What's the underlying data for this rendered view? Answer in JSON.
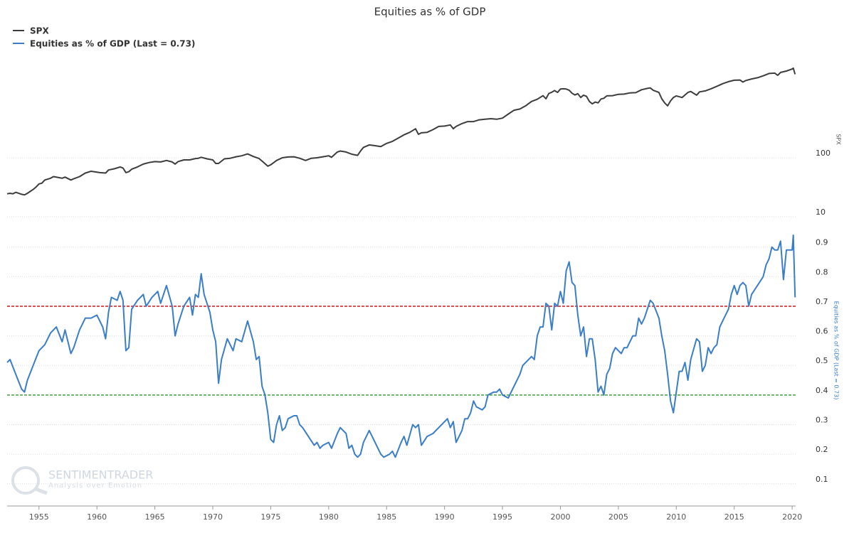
{
  "chart_data": [
    {
      "type": "line",
      "title": "Equities as % of GDP",
      "ylabel": "SPX",
      "log": true,
      "xlim": [
        1952.25,
        2020.3
      ],
      "ylim": [
        10,
        5900
      ],
      "yticks": [
        10,
        100
      ],
      "grid": true,
      "series": [
        {
          "name": "SPX",
          "color": "#3c3c3c",
          "x": [
            1952.25,
            1952.5,
            1952.75,
            1953,
            1953.5,
            1953.75,
            1954,
            1954.5,
            1954.75,
            1955,
            1955.25,
            1955.5,
            1956,
            1956.25,
            1956.75,
            1957,
            1957.25,
            1957.75,
            1958,
            1958.5,
            1959,
            1959.5,
            1960,
            1960.25,
            1960.75,
            1961,
            1961.5,
            1962,
            1962.25,
            1962.5,
            1962.75,
            1963,
            1963.5,
            1964,
            1964.5,
            1965,
            1965.5,
            1966,
            1966.5,
            1966.75,
            1967,
            1967.5,
            1968,
            1968.5,
            1968.75,
            1969,
            1969.5,
            1970,
            1970.25,
            1970.5,
            1971,
            1971.5,
            1972,
            1972.5,
            1973,
            1973.5,
            1974,
            1974.25,
            1974.75,
            1975,
            1975.5,
            1976,
            1976.5,
            1977,
            1977.5,
            1978,
            1978.5,
            1979,
            1979.5,
            1980,
            1980.25,
            1980.75,
            1981,
            1981.5,
            1982,
            1982.5,
            1982.75,
            1983,
            1983.5,
            1984,
            1984.5,
            1985,
            1985.5,
            1986,
            1986.5,
            1987,
            1987.5,
            1987.75,
            1988,
            1988.5,
            1989,
            1989.5,
            1990,
            1990.5,
            1990.75,
            1991,
            1991.5,
            1992,
            1992.5,
            1993,
            1993.5,
            1994,
            1994.5,
            1995,
            1995.5,
            1996,
            1996.5,
            1997,
            1997.5,
            1998,
            1998.5,
            1998.75,
            1999,
            1999.25,
            1999.5,
            1999.75,
            2000,
            2000.25,
            2000.5,
            2000.75,
            2001,
            2001.25,
            2001.5,
            2001.75,
            2002,
            2002.25,
            2002.5,
            2002.75,
            2003,
            2003.25,
            2003.5,
            2003.75,
            2004,
            2004.5,
            2005,
            2005.5,
            2006,
            2006.5,
            2007,
            2007.5,
            2007.75,
            2008,
            2008.5,
            2008.75,
            2009,
            2009.25,
            2009.5,
            2009.75,
            2010,
            2010.5,
            2011,
            2011.25,
            2011.75,
            2012,
            2012.5,
            2013,
            2013.5,
            2014,
            2014.5,
            2015,
            2015.5,
            2015.75,
            2016,
            2016.5,
            2017,
            2017.5,
            2018,
            2018.5,
            2018.75,
            2019,
            2019.5,
            2020,
            2020.1,
            2020.25
          ],
          "values": [
            24.5,
            25,
            24.5,
            26,
            24,
            23.5,
            25,
            29,
            32,
            36,
            37,
            42,
            45,
            48,
            46,
            45,
            47,
            42,
            44,
            48,
            55,
            59,
            57,
            56,
            55,
            62,
            65,
            70,
            67,
            56,
            58,
            64,
            70,
            78,
            83,
            86,
            85,
            90,
            85,
            78,
            86,
            92,
            92,
            97,
            98,
            102,
            96,
            92,
            80,
            80,
            96,
            98,
            104,
            108,
            116,
            105,
            97,
            88,
            72,
            76,
            90,
            100,
            103,
            104,
            98,
            90,
            98,
            100,
            104,
            108,
            102,
            125,
            130,
            125,
            115,
            110,
            130,
            150,
            165,
            160,
            155,
            175,
            190,
            215,
            245,
            270,
            310,
            250,
            265,
            270,
            300,
            340,
            345,
            360,
            310,
            340,
            380,
            410,
            410,
            440,
            450,
            460,
            450,
            470,
            550,
            640,
            670,
            760,
            900,
            980,
            1130,
            1000,
            1230,
            1290,
            1380,
            1280,
            1460,
            1480,
            1460,
            1400,
            1240,
            1160,
            1220,
            1050,
            1150,
            1100,
            900,
            820,
            880,
            850,
            990,
            1020,
            1120,
            1130,
            1190,
            1200,
            1260,
            1270,
            1420,
            1500,
            1530,
            1400,
            1280,
            1000,
            850,
            760,
            920,
            1050,
            1120,
            1050,
            1280,
            1330,
            1150,
            1310,
            1360,
            1480,
            1630,
            1800,
            1950,
            2060,
            2080,
            1920,
            2040,
            2170,
            2270,
            2450,
            2680,
            2720,
            2500,
            2800,
            2950,
            3200,
            3300,
            2600
          ]
        }
      ]
    },
    {
      "type": "line",
      "ylabel": "Equities as % of GDP (Last = 0.73)",
      "xlim": [
        1952.25,
        2020.3
      ],
      "ylim": [
        0.025,
        1.0
      ],
      "xticks": [
        1955,
        1960,
        1965,
        1970,
        1975,
        1980,
        1985,
        1990,
        1995,
        2000,
        2005,
        2010,
        2015,
        2020
      ],
      "yticks": [
        0.1,
        0.2,
        0.3,
        0.4,
        0.5,
        0.6,
        0.7,
        0.8,
        0.9
      ],
      "grid": true,
      "reference_lines": [
        {
          "value": 0.7,
          "color": "#cc0000"
        },
        {
          "value": 0.4,
          "color": "#1f8a1f"
        }
      ],
      "series": [
        {
          "name": "Equities as % of GDP (Last = 0.73)",
          "color": "#3a7dc9",
          "x": [
            1952.25,
            1952.5,
            1953,
            1953.5,
            1953.75,
            1954,
            1954.5,
            1955,
            1955.5,
            1956,
            1956.5,
            1957,
            1957.25,
            1957.75,
            1958,
            1958.5,
            1959,
            1959.5,
            1960,
            1960.5,
            1960.75,
            1961,
            1961.25,
            1961.75,
            1962,
            1962.25,
            1962.5,
            1962.75,
            1963,
            1963.5,
            1964,
            1964.25,
            1964.75,
            1965.25,
            1965.5,
            1966,
            1966.5,
            1966.75,
            1967,
            1967.5,
            1968,
            1968.25,
            1968.5,
            1968.75,
            1969,
            1969.25,
            1969.75,
            1970,
            1970.25,
            1970.5,
            1970.75,
            1971.25,
            1971.75,
            1972,
            1972.5,
            1973,
            1973.5,
            1973.75,
            1974,
            1974.25,
            1974.5,
            1974.75,
            1975,
            1975.25,
            1975.5,
            1975.75,
            1976,
            1976.25,
            1976.5,
            1977,
            1977.25,
            1977.5,
            1977.75,
            1978.25,
            1978.75,
            1979,
            1979.25,
            1979.5,
            1980,
            1980.25,
            1980.75,
            1981,
            1981.5,
            1981.75,
            1982,
            1982.25,
            1982.5,
            1982.75,
            1983,
            1983.5,
            1983.75,
            1984,
            1984.5,
            1984.75,
            1985.25,
            1985.5,
            1985.75,
            1986.25,
            1986.5,
            1986.75,
            1987.25,
            1987.5,
            1987.75,
            1988,
            1988.5,
            1989,
            1989.5,
            1990,
            1990.25,
            1990.5,
            1990.75,
            1991,
            1991.5,
            1991.75,
            1992,
            1992.25,
            1992.5,
            1992.75,
            1993.25,
            1993.5,
            1993.75,
            1994.25,
            1994.5,
            1994.75,
            1995,
            1995.5,
            1996,
            1996.5,
            1996.75,
            1997.25,
            1997.5,
            1997.75,
            1998,
            1998.25,
            1998.5,
            1998.75,
            1999,
            1999.25,
            1999.5,
            1999.75,
            2000,
            2000.25,
            2000.5,
            2000.75,
            2001,
            2001.25,
            2001.5,
            2001.75,
            2002,
            2002.25,
            2002.5,
            2002.75,
            2003,
            2003.25,
            2003.5,
            2003.75,
            2004,
            2004.25,
            2004.5,
            2004.75,
            2005.25,
            2005.5,
            2005.75,
            2006.25,
            2006.5,
            2006.75,
            2007,
            2007.25,
            2007.75,
            2008,
            2008.5,
            2008.75,
            2009,
            2009.25,
            2009.5,
            2009.75,
            2010,
            2010.25,
            2010.5,
            2010.75,
            2011,
            2011.25,
            2011.75,
            2012,
            2012.25,
            2012.5,
            2012.75,
            2013,
            2013.25,
            2013.5,
            2013.75,
            2014,
            2014.5,
            2014.75,
            2015,
            2015.25,
            2015.5,
            2015.75,
            2016,
            2016.25,
            2016.5,
            2017,
            2017.5,
            2017.75,
            2018,
            2018.25,
            2018.5,
            2018.75,
            2019,
            2019.25,
            2019.5,
            2019.75,
            2020,
            2020.1,
            2020.25
          ],
          "values": [
            0.51,
            0.52,
            0.47,
            0.42,
            0.41,
            0.45,
            0.5,
            0.55,
            0.57,
            0.61,
            0.63,
            0.58,
            0.62,
            0.54,
            0.56,
            0.62,
            0.66,
            0.66,
            0.67,
            0.63,
            0.59,
            0.68,
            0.73,
            0.72,
            0.75,
            0.72,
            0.55,
            0.56,
            0.69,
            0.72,
            0.74,
            0.7,
            0.73,
            0.75,
            0.71,
            0.77,
            0.7,
            0.6,
            0.64,
            0.7,
            0.73,
            0.67,
            0.74,
            0.73,
            0.81,
            0.74,
            0.68,
            0.62,
            0.58,
            0.44,
            0.52,
            0.59,
            0.55,
            0.59,
            0.58,
            0.65,
            0.58,
            0.52,
            0.53,
            0.43,
            0.4,
            0.34,
            0.25,
            0.24,
            0.3,
            0.33,
            0.28,
            0.29,
            0.32,
            0.33,
            0.33,
            0.3,
            0.29,
            0.26,
            0.23,
            0.24,
            0.22,
            0.23,
            0.24,
            0.22,
            0.27,
            0.29,
            0.27,
            0.22,
            0.23,
            0.2,
            0.19,
            0.2,
            0.24,
            0.28,
            0.26,
            0.24,
            0.2,
            0.19,
            0.2,
            0.21,
            0.19,
            0.24,
            0.26,
            0.23,
            0.3,
            0.29,
            0.3,
            0.23,
            0.26,
            0.27,
            0.29,
            0.31,
            0.32,
            0.29,
            0.31,
            0.24,
            0.28,
            0.32,
            0.32,
            0.34,
            0.38,
            0.36,
            0.35,
            0.36,
            0.4,
            0.41,
            0.41,
            0.42,
            0.4,
            0.39,
            0.43,
            0.47,
            0.5,
            0.52,
            0.53,
            0.52,
            0.6,
            0.63,
            0.63,
            0.71,
            0.7,
            0.62,
            0.71,
            0.7,
            0.75,
            0.71,
            0.82,
            0.85,
            0.78,
            0.77,
            0.67,
            0.6,
            0.63,
            0.53,
            0.59,
            0.59,
            0.52,
            0.41,
            0.43,
            0.4,
            0.47,
            0.49,
            0.54,
            0.56,
            0.54,
            0.56,
            0.56,
            0.6,
            0.6,
            0.66,
            0.64,
            0.66,
            0.72,
            0.71,
            0.66,
            0.6,
            0.55,
            0.47,
            0.38,
            0.34,
            0.41,
            0.48,
            0.48,
            0.51,
            0.45,
            0.52,
            0.59,
            0.58,
            0.48,
            0.5,
            0.56,
            0.54,
            0.56,
            0.57,
            0.63,
            0.65,
            0.69,
            0.74,
            0.77,
            0.74,
            0.77,
            0.78,
            0.77,
            0.7,
            0.74,
            0.77,
            0.8,
            0.84,
            0.86,
            0.9,
            0.89,
            0.89,
            0.92,
            0.79,
            0.89,
            0.89,
            0.89,
            0.94,
            0.73
          ]
        }
      ]
    }
  ],
  "watermark": {
    "brand": "SENTIMENTRADER",
    "tagline": "Analysis over Emotion"
  }
}
